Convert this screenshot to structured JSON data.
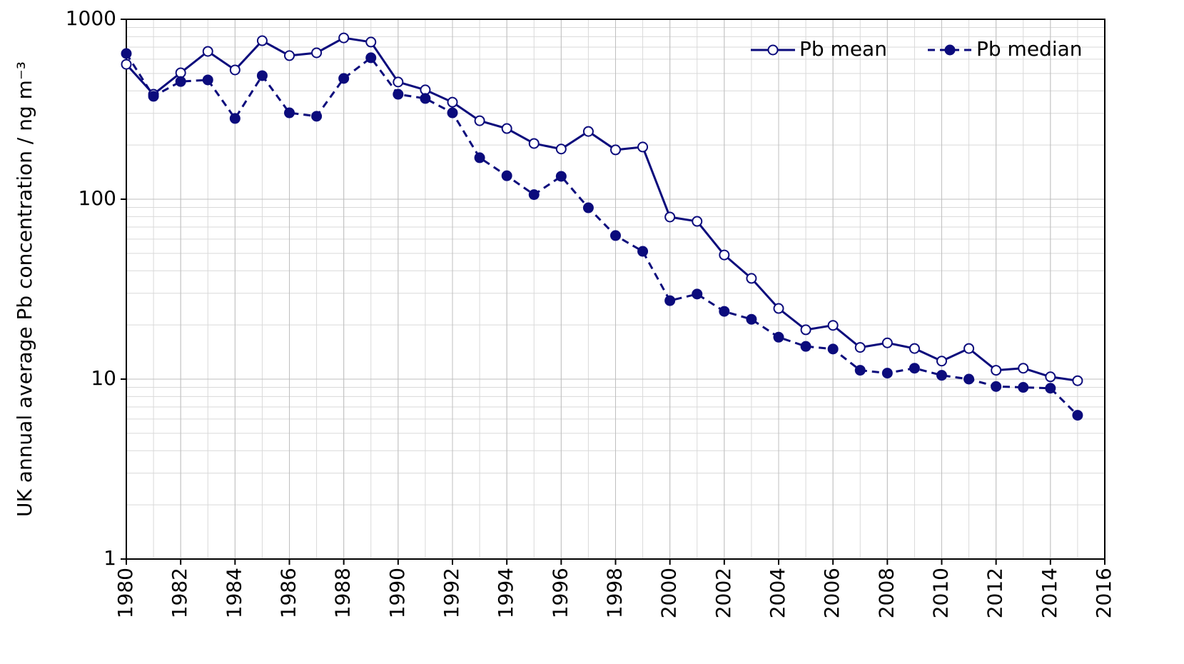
{
  "chart_data": {
    "type": "line",
    "ylabel": "UK annual average Pb concentration / ng m⁻³",
    "x": [
      1980,
      1981,
      1982,
      1983,
      1984,
      1985,
      1986,
      1987,
      1988,
      1989,
      1990,
      1991,
      1992,
      1993,
      1994,
      1995,
      1996,
      1997,
      1998,
      1999,
      2000,
      2001,
      2002,
      2003,
      2004,
      2005,
      2006,
      2007,
      2008,
      2009,
      2010,
      2011,
      2012,
      2013,
      2014,
      2015
    ],
    "series": [
      {
        "name": "Pb mean",
        "color": "#0b0b7c",
        "line_style": "solid",
        "marker": "open",
        "values": [
          562,
          383,
          504,
          663,
          523,
          760,
          628,
          651,
          788,
          747,
          448,
          405,
          346,
          273,
          247,
          204,
          190,
          238,
          188,
          195,
          79.6,
          75.3,
          49,
          36.3,
          24.7,
          18.8,
          19.9,
          15,
          15.9,
          14.8,
          12.6,
          14.8,
          11.2,
          11.5,
          10.3,
          9.8
        ]
      },
      {
        "name": "Pb median",
        "color": "#0b0b7c",
        "line_style": "dashed",
        "marker": "filled",
        "values": [
          645,
          373,
          451,
          460,
          281,
          486,
          302,
          289,
          469,
          611,
          383,
          363,
          302,
          170,
          135,
          106,
          134,
          89.6,
          62.8,
          51.3,
          27.3,
          29.7,
          23.8,
          21.5,
          17.1,
          15.2,
          14.7,
          11.2,
          10.8,
          11.5,
          10.5,
          10,
          9.1,
          9.0,
          8.9,
          6.3
        ]
      }
    ],
    "xlim": [
      1980,
      2016
    ],
    "xticks": [
      1980,
      1982,
      1984,
      1986,
      1988,
      1990,
      1992,
      1994,
      1996,
      1998,
      2000,
      2002,
      2004,
      2006,
      2008,
      2010,
      2012,
      2014,
      2016
    ],
    "ylim": [
      1,
      1000
    ],
    "yticks": [
      1,
      10,
      100,
      1000
    ],
    "ylog": true,
    "grid": true,
    "minor_grid": true,
    "legend": "upper right"
  }
}
